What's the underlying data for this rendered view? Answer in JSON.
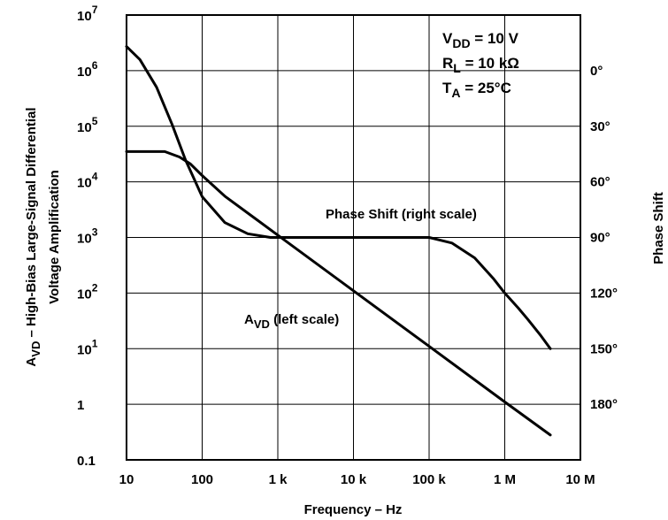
{
  "chart_data": {
    "type": "line",
    "title": "",
    "xlabel": "Frequency – Hz",
    "ylabel": {
      "main": "A",
      "sub": "VD",
      "line1_rest": " – High-Bias Large-Signal Differential",
      "line2": "Voltage Amplification"
    },
    "ylabel_right": "Phase Shift",
    "x_scale": "log",
    "y_scale": "log",
    "xlim": [
      10,
      10000000
    ],
    "ylim": [
      0.1,
      10000000
    ],
    "y_right_lim_deg": [
      -30,
      210
    ],
    "grid": true,
    "x_ticks": [
      {
        "value": 10,
        "label": "10"
      },
      {
        "value": 100,
        "label": "100"
      },
      {
        "value": 1000,
        "label": "1 k"
      },
      {
        "value": 10000,
        "label": "10 k"
      },
      {
        "value": 100000,
        "label": "100 k"
      },
      {
        "value": 1000000,
        "label": "1 M"
      },
      {
        "value": 10000000,
        "label": "10 M"
      }
    ],
    "y_ticks_left": [
      {
        "value": 10000000,
        "base": "10",
        "exp": "7"
      },
      {
        "value": 1000000,
        "base": "10",
        "exp": "6"
      },
      {
        "value": 100000,
        "base": "10",
        "exp": "5"
      },
      {
        "value": 10000,
        "base": "10",
        "exp": "4"
      },
      {
        "value": 1000,
        "base": "10",
        "exp": "3"
      },
      {
        "value": 100,
        "base": "10",
        "exp": "2"
      },
      {
        "value": 10,
        "base": "10",
        "exp": "1"
      },
      {
        "value": 1,
        "base": "1",
        "exp": ""
      },
      {
        "value": 0.1,
        "base": "0.1",
        "exp": ""
      }
    ],
    "y_ticks_right": [
      {
        "value": 0,
        "label": "0°"
      },
      {
        "value": 30,
        "label": "30°"
      },
      {
        "value": 60,
        "label": "60°"
      },
      {
        "value": 90,
        "label": "90°"
      },
      {
        "value": 120,
        "label": "120°"
      },
      {
        "value": 150,
        "label": "150°"
      },
      {
        "value": 180,
        "label": "180°"
      }
    ],
    "conditions": [
      {
        "main": "V",
        "sub": "DD",
        "rest": " = 10 V"
      },
      {
        "main": "R",
        "sub": "L",
        "rest": " = 10 kΩ"
      },
      {
        "main": "T",
        "sub": "A",
        "rest": " = 25°C"
      }
    ],
    "series": [
      {
        "axis": "left",
        "label": {
          "main": "A",
          "sub": "VD",
          "rest": " (left scale)"
        },
        "points": [
          [
            10,
            35000
          ],
          [
            20,
            35000
          ],
          [
            32,
            35000
          ],
          [
            50,
            28000
          ],
          [
            70,
            21000
          ],
          [
            100,
            13000
          ],
          [
            200,
            5500
          ],
          [
            500,
            2200
          ],
          [
            1000,
            1100
          ],
          [
            10000,
            110
          ],
          [
            100000,
            11
          ],
          [
            1000000,
            1.1
          ],
          [
            4000000,
            0.28
          ]
        ]
      },
      {
        "axis": "right",
        "label": {
          "main": "",
          "sub": "",
          "rest": "Phase Shift (right scale)"
        },
        "points": [
          [
            10,
            -13
          ],
          [
            15,
            -6
          ],
          [
            25,
            9
          ],
          [
            40,
            29
          ],
          [
            60,
            48
          ],
          [
            100,
            68
          ],
          [
            200,
            82
          ],
          [
            400,
            88
          ],
          [
            800,
            90
          ],
          [
            1000,
            90
          ],
          [
            10000,
            90
          ],
          [
            100000,
            90
          ],
          [
            200000,
            93
          ],
          [
            400000,
            101
          ],
          [
            700000,
            112
          ],
          [
            1000000,
            120
          ],
          [
            1500000,
            128
          ],
          [
            2000000,
            134
          ],
          [
            3000000,
            143
          ],
          [
            4000000,
            150
          ]
        ]
      }
    ]
  }
}
